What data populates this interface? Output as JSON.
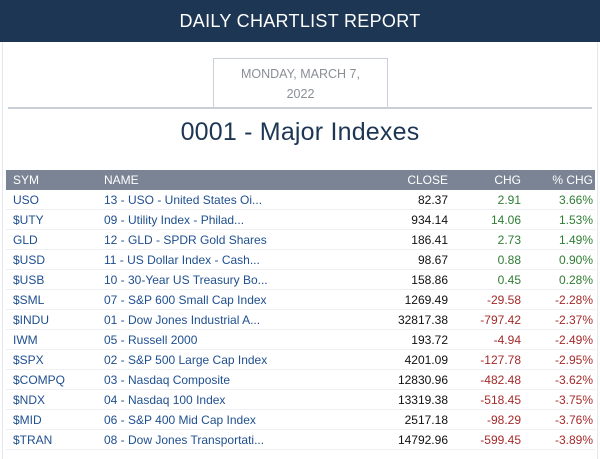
{
  "header": {
    "title": "DAILY CHARTLIST REPORT"
  },
  "date": {
    "line1": "MONDAY, MARCH 7,",
    "line2": "2022"
  },
  "list_title": "0001 - Major Indexes",
  "table": {
    "columns": [
      "SYM",
      "NAME",
      "CLOSE",
      "CHG",
      "% CHG"
    ],
    "rows": [
      {
        "sym": "USO",
        "name": "13 - USO - United States Oi...",
        "close": "82.37",
        "chg": "2.91",
        "pct": "3.66%",
        "dir": "pos"
      },
      {
        "sym": "$UTY",
        "name": "09 - Utility Index - Philad...",
        "close": "934.14",
        "chg": "14.06",
        "pct": "1.53%",
        "dir": "pos"
      },
      {
        "sym": "GLD",
        "name": "12 - GLD - SPDR Gold Shares",
        "close": "186.41",
        "chg": "2.73",
        "pct": "1.49%",
        "dir": "pos"
      },
      {
        "sym": "$USD",
        "name": "11 - US Dollar Index - Cash...",
        "close": "98.67",
        "chg": "0.88",
        "pct": "0.90%",
        "dir": "pos"
      },
      {
        "sym": "$USB",
        "name": "10 - 30-Year US Treasury Bo...",
        "close": "158.86",
        "chg": "0.45",
        "pct": "0.28%",
        "dir": "pos"
      },
      {
        "sym": "$SML",
        "name": "07 - S&P 600 Small Cap Index",
        "close": "1269.49",
        "chg": "-29.58",
        "pct": "-2.28%",
        "dir": "neg"
      },
      {
        "sym": "$INDU",
        "name": "01 - Dow Jones Industrial A...",
        "close": "32817.38",
        "chg": "-797.42",
        "pct": "-2.37%",
        "dir": "neg"
      },
      {
        "sym": "IWM",
        "name": "05 - Russell 2000",
        "close": "193.72",
        "chg": "-4.94",
        "pct": "-2.49%",
        "dir": "neg"
      },
      {
        "sym": "$SPX",
        "name": "02 - S&P 500 Large Cap Index",
        "close": "4201.09",
        "chg": "-127.78",
        "pct": "-2.95%",
        "dir": "neg"
      },
      {
        "sym": "$COMPQ",
        "name": "03 - Nasdaq Composite",
        "close": "12830.96",
        "chg": "-482.48",
        "pct": "-3.62%",
        "dir": "neg"
      },
      {
        "sym": "$NDX",
        "name": "04 - Nasdaq 100 Index",
        "close": "13319.38",
        "chg": "-518.45",
        "pct": "-3.75%",
        "dir": "neg"
      },
      {
        "sym": "$MID",
        "name": "06 - S&P 400 Mid Cap Index",
        "close": "2517.18",
        "chg": "-98.29",
        "pct": "-3.76%",
        "dir": "neg"
      },
      {
        "sym": "$TRAN",
        "name": "08 - Dow Jones Transportati...",
        "close": "14792.96",
        "chg": "-599.45",
        "pct": "-3.89%",
        "dir": "neg"
      }
    ]
  },
  "colors": {
    "banner": "#1d3654",
    "header_row": "#7a8494",
    "positive": "#2e7d32",
    "negative": "#a52a2a",
    "link": "#1f4f8f"
  }
}
